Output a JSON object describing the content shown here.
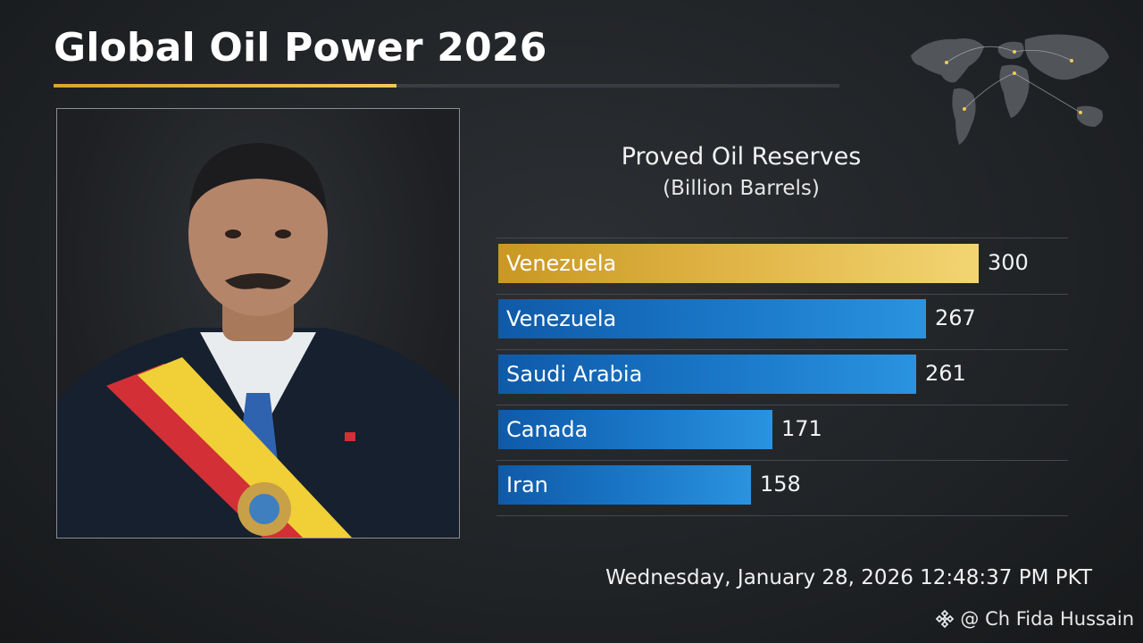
{
  "header": {
    "title": "Global Oil Power 2026"
  },
  "chart_data": {
    "type": "bar",
    "orientation": "horizontal",
    "title": "Proved Oil Reserves",
    "subtitle": "(Billion Barrels)",
    "categories": [
      "Venezuela",
      "Venezuela",
      "Saudi Arabia",
      "Canada",
      "Iran"
    ],
    "values": [
      300,
      267,
      261,
      171,
      158
    ],
    "xlim": [
      0,
      300
    ],
    "highlight_index": 0,
    "colors": {
      "highlight": "#e3b84b",
      "default": "#1b78c9"
    },
    "grid": "horizontal separators",
    "legend": "none"
  },
  "footer": {
    "timestamp": "Wednesday, January 28, 2026 12:48:37 PM PKT",
    "credit": "@ Ch Fida Hussain",
    "credit_icon": "diamond-logo-icon"
  },
  "portrait": {
    "icon": "portrait-photo"
  }
}
